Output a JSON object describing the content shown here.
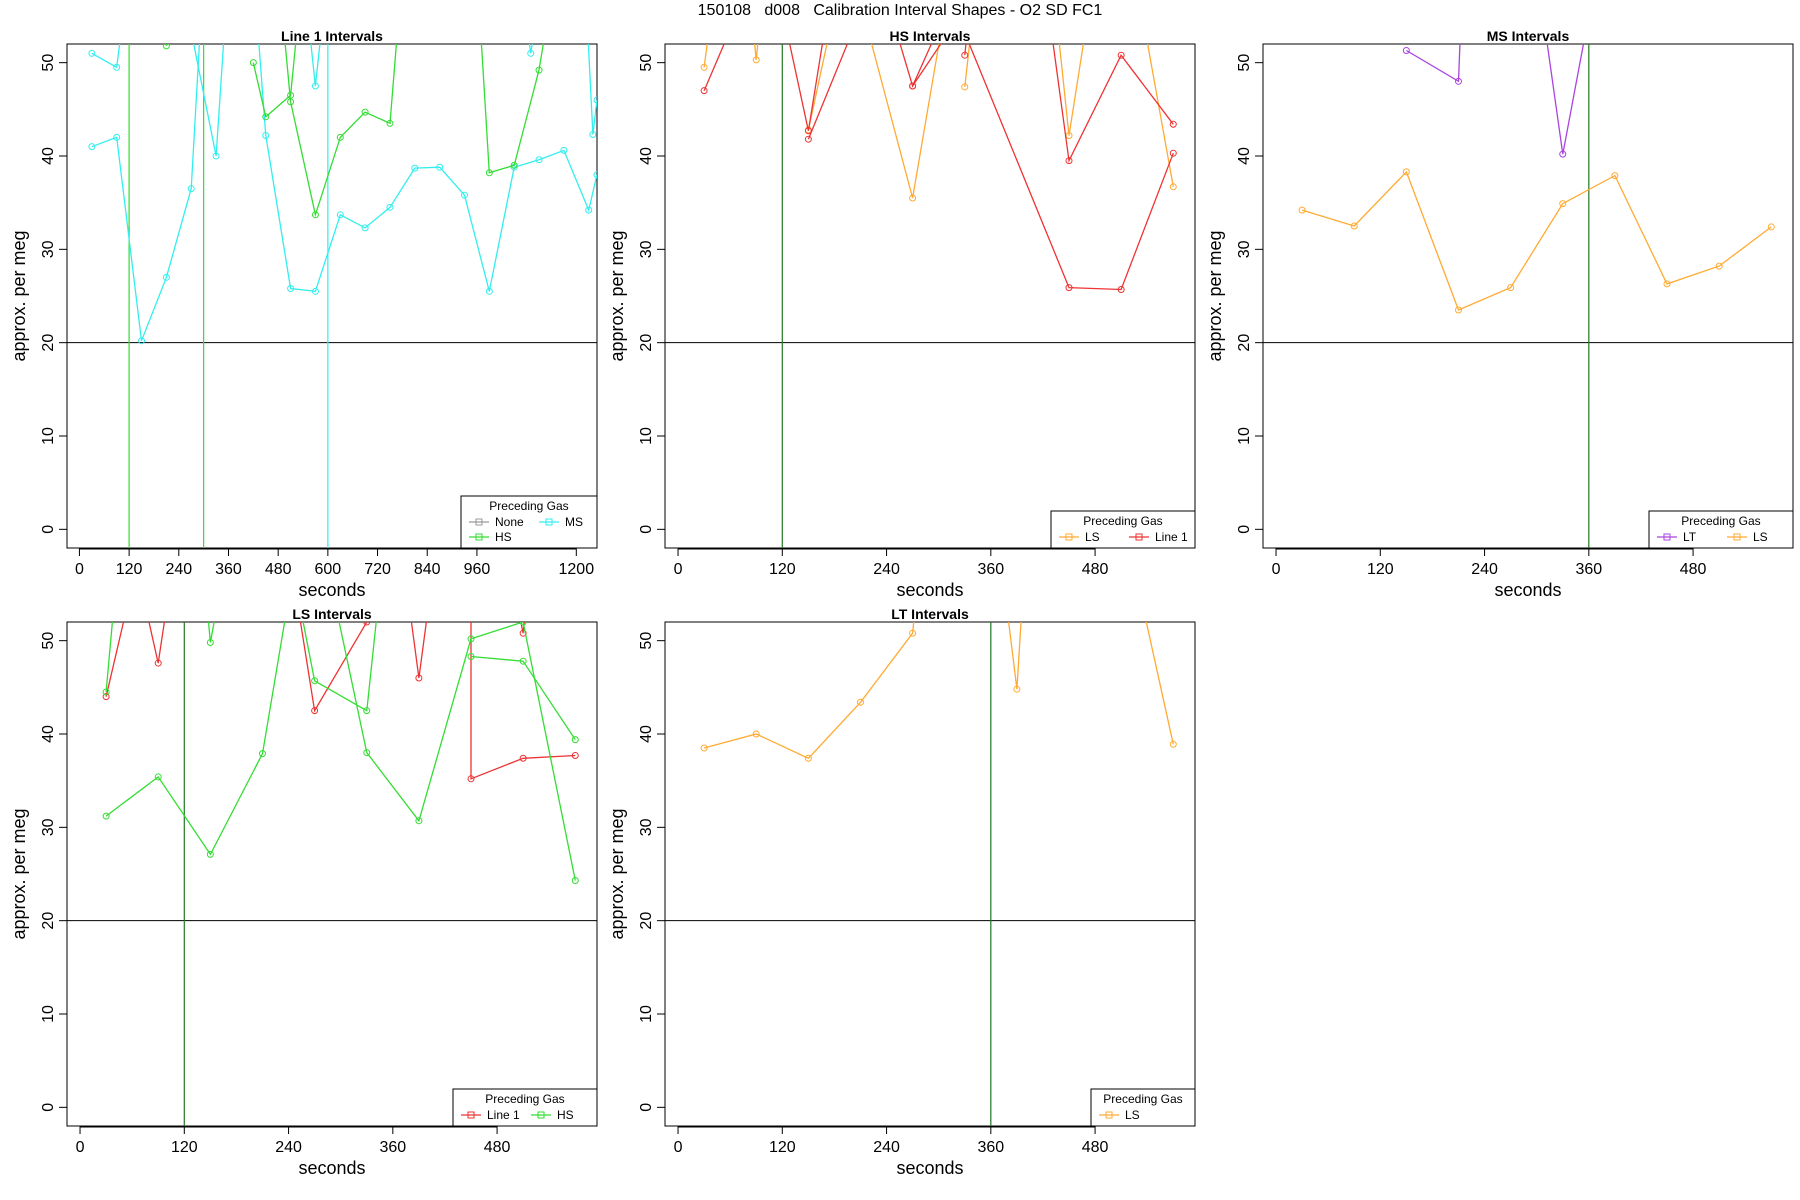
{
  "figure": {
    "title": "150108   d008   Calibration Interval Shapes - O2 SD FC1"
  },
  "colors": {
    "None": "#999999",
    "HS": "#33dd33",
    "MS": "#33eeee",
    "LS": "#ffaa33",
    "Line 1": "#ee3333",
    "LT": "#aa44dd",
    "hline": "#000000"
  },
  "chart_data": [
    {
      "type": "line",
      "title": "Line 1 Intervals",
      "xlabel": "seconds",
      "ylabel": "approx. per meg",
      "xlim": [
        -30,
        1250
      ],
      "ylim": [
        -2,
        52
      ],
      "xticks": [
        0,
        120,
        240,
        360,
        480,
        600,
        720,
        840,
        960,
        1200
      ],
      "yticks": [
        0,
        10,
        20,
        30,
        40,
        50
      ],
      "hline": 20,
      "vlines": [
        {
          "x": 120,
          "color": "HS"
        },
        {
          "x": 300,
          "color": "HS"
        },
        {
          "x": 600,
          "color": "MS"
        }
      ],
      "legend": {
        "title": "Preceding Gas",
        "position": "bottom-right",
        "cols": 2,
        "entries": [
          "None",
          "HS",
          "MS"
        ]
      },
      "series": [
        {
          "name": "MS",
          "segments": [
            [
              [
                30,
                51
              ],
              [
                90,
                49.5
              ],
              [
                120,
                60
              ]
            ],
            [
              [
                240,
                60
              ],
              [
                330,
                40
              ],
              [
                360,
                60
              ]
            ],
            [
              [
                540,
                60
              ],
              [
                570,
                47.5
              ],
              [
                600,
                60
              ]
            ],
            [
              [
                1060,
                60
              ],
              [
                1090,
                51
              ],
              [
                1120,
                60
              ]
            ],
            [
              [
                1220,
                60
              ],
              [
                1240,
                42.3
              ],
              [
                1250,
                46
              ]
            ],
            [
              [
                30,
                41
              ],
              [
                90,
                42
              ],
              [
                150,
                20.2
              ],
              [
                210,
                27
              ],
              [
                270,
                36.5
              ],
              [
                300,
                60
              ]
            ],
            [
              [
                420,
                60
              ],
              [
                450,
                42.2
              ],
              [
                510,
                25.8
              ],
              [
                570,
                25.5
              ],
              [
                630,
                33.7
              ],
              [
                690,
                32.3
              ],
              [
                750,
                34.5
              ],
              [
                810,
                38.7
              ],
              [
                870,
                38.8
              ],
              [
                930,
                35.8
              ],
              [
                990,
                25.5
              ],
              [
                1050,
                38.8
              ],
              [
                1110,
                39.6
              ],
              [
                1170,
                40.6
              ],
              [
                1230,
                34.2
              ],
              [
                1250,
                38
              ]
            ]
          ]
        },
        {
          "name": "HS",
          "segments": [
            [
              [
                200,
                60
              ],
              [
                210,
                51.8
              ],
              [
                220,
                60
              ]
            ],
            [
              [
                420,
                50
              ],
              [
                450,
                44.2
              ],
              [
                510,
                46.5
              ],
              [
                540,
                60
              ]
            ],
            [
              [
                480,
                60
              ],
              [
                510,
                45.8
              ],
              [
                570,
                33.7
              ],
              [
                630,
                42
              ],
              [
                690,
                44.7
              ],
              [
                750,
                43.5
              ],
              [
                780,
                60
              ]
            ],
            [
              [
                960,
                60
              ],
              [
                990,
                38.2
              ],
              [
                1050,
                39
              ],
              [
                1110,
                49.2
              ],
              [
                1150,
                60
              ]
            ]
          ]
        }
      ]
    },
    {
      "type": "line",
      "title": "HS Intervals",
      "xlabel": "seconds",
      "ylabel": "approx. per meg",
      "xlim": [
        -15,
        595
      ],
      "ylim": [
        -2,
        52
      ],
      "xticks": [
        0,
        120,
        240,
        360,
        480
      ],
      "yticks": [
        0,
        10,
        20,
        30,
        40,
        50
      ],
      "hline": 20,
      "vlines": [
        {
          "x": 120,
          "color": "HS"
        }
      ],
      "legend": {
        "title": "Preceding Gas",
        "position": "bottom-right",
        "cols": 2,
        "entries": [
          "LS",
          "Line 1"
        ]
      },
      "series": [
        {
          "name": "LS",
          "segments": [
            [
              [
                30,
                49.5
              ],
              [
                45,
                60
              ]
            ],
            [
              [
                80,
                60
              ],
              [
                90,
                50.3
              ],
              [
                100,
                60
              ]
            ],
            [
              [
                150,
                42.8
              ],
              [
                190,
                60
              ]
            ],
            [
              [
                200,
                60
              ],
              [
                270,
                35.5
              ],
              [
                315,
                60
              ]
            ],
            [
              [
                330,
                47.4
              ],
              [
                345,
                60
              ]
            ],
            [
              [
                430,
                60
              ],
              [
                450,
                42.2
              ],
              [
                480,
                60
              ]
            ],
            [
              [
                525,
                60
              ],
              [
                570,
                36.7
              ]
            ]
          ]
        },
        {
          "name": "Line 1",
          "segments": [
            [
              [
                30,
                47
              ],
              [
                90,
                60
              ]
            ],
            [
              [
                110,
                60
              ],
              [
                150,
                42.7
              ],
              [
                180,
                60
              ]
            ],
            [
              [
                150,
                41.8
              ],
              [
                230,
                60
              ]
            ],
            [
              [
                230,
                60
              ],
              [
                270,
                47.5
              ],
              [
                330,
                60
              ]
            ],
            [
              [
                330,
                50.8
              ],
              [
                340,
                60
              ]
            ],
            [
              [
                270,
                47.5
              ],
              [
                360,
                60
              ]
            ],
            [
              [
                300,
                60
              ],
              [
                450,
                25.9
              ],
              [
                510,
                25.7
              ],
              [
                570,
                40.3
              ]
            ],
            [
              [
                420,
                60
              ],
              [
                450,
                39.5
              ],
              [
                510,
                50.8
              ],
              [
                570,
                43.4
              ]
            ]
          ]
        }
      ]
    },
    {
      "type": "line",
      "title": "MS Intervals",
      "xlabel": "seconds",
      "ylabel": "approx. per meg",
      "xlim": [
        -15,
        595
      ],
      "ylim": [
        -2,
        52
      ],
      "xticks": [
        0,
        120,
        240,
        360,
        480
      ],
      "yticks": [
        0,
        10,
        20,
        30,
        40,
        50
      ],
      "hline": 20,
      "vlines": [
        {
          "x": 360,
          "color": "HS"
        }
      ],
      "legend": {
        "title": "Preceding Gas",
        "position": "bottom-right",
        "cols": 2,
        "entries": [
          "LT",
          "LS"
        ]
      },
      "series": [
        {
          "name": "LT",
          "segments": [
            [
              [
                150,
                51.3
              ],
              [
                210,
                48
              ],
              [
                215,
                60
              ]
            ],
            [
              [
                300,
                60
              ],
              [
                330,
                40.2
              ],
              [
                370,
                60
              ]
            ]
          ]
        },
        {
          "name": "LS",
          "segments": [
            [
              [
                30,
                34.2
              ],
              [
                90,
                32.5
              ],
              [
                150,
                38.3
              ],
              [
                210,
                23.5
              ],
              [
                270,
                25.9
              ],
              [
                330,
                34.9
              ],
              [
                390,
                37.9
              ],
              [
                450,
                26.3
              ],
              [
                510,
                28.2
              ],
              [
                570,
                32.4
              ]
            ]
          ]
        }
      ]
    },
    {
      "type": "line",
      "title": "LS Intervals",
      "xlabel": "seconds",
      "ylabel": "approx. per meg",
      "xlim": [
        -15,
        595
      ],
      "ylim": [
        -2,
        52
      ],
      "xticks": [
        0,
        120,
        240,
        360,
        480
      ],
      "yticks": [
        0,
        10,
        20,
        30,
        40,
        50
      ],
      "hline": 20,
      "vlines": [
        {
          "x": 120,
          "color": "HS"
        }
      ],
      "legend": {
        "title": "Preceding Gas",
        "position": "bottom-right",
        "cols": 2,
        "entries": [
          "Line 1",
          "HS"
        ]
      },
      "series": [
        {
          "name": "Line 1",
          "segments": [
            [
              [
                30,
                44
              ],
              [
                70,
                60
              ]
            ],
            [
              [
                60,
                60
              ],
              [
                90,
                47.6
              ],
              [
                110,
                60
              ]
            ],
            [
              [
                240,
                60
              ],
              [
                270,
                42.5
              ],
              [
                330,
                52
              ],
              [
                340,
                60
              ]
            ],
            [
              [
                370,
                60
              ],
              [
                390,
                46
              ],
              [
                410,
                60
              ]
            ],
            [
              [
                450,
                60
              ],
              [
                450,
                35.2
              ],
              [
                510,
                37.4
              ],
              [
                570,
                37.7
              ]
            ],
            [
              [
                490,
                60
              ],
              [
                510,
                50.8
              ],
              [
                520,
                60
              ]
            ]
          ]
        },
        {
          "name": "HS",
          "segments": [
            [
              [
                30,
                44.5
              ],
              [
                45,
                60
              ]
            ],
            [
              [
                140,
                60
              ],
              [
                150,
                49.8
              ],
              [
                170,
                60
              ]
            ],
            [
              [
                30,
                31.2
              ],
              [
                90,
                35.4
              ],
              [
                150,
                27.1
              ],
              [
                210,
                37.9
              ],
              [
                250,
                60
              ]
            ],
            [
              [
                240,
                60
              ],
              [
                270,
                45.7
              ],
              [
                330,
                42.5
              ],
              [
                350,
                60
              ]
            ],
            [
              [
                280,
                60
              ],
              [
                330,
                38
              ],
              [
                390,
                30.7
              ],
              [
                450,
                50.2
              ],
              [
                510,
                52
              ],
              [
                570,
                24.3
              ]
            ],
            [
              [
                450,
                48.3
              ],
              [
                510,
                47.8
              ],
              [
                570,
                39.4
              ]
            ]
          ]
        }
      ]
    },
    {
      "type": "line",
      "title": "LT Intervals",
      "xlabel": "seconds",
      "ylabel": "approx. per meg",
      "xlim": [
        -15,
        595
      ],
      "ylim": [
        -2,
        52
      ],
      "xticks": [
        0,
        120,
        240,
        360,
        480
      ],
      "yticks": [
        0,
        10,
        20,
        30,
        40,
        50
      ],
      "hline": 20,
      "vlines": [
        {
          "x": 360,
          "color": "HS"
        }
      ],
      "legend": {
        "title": "Preceding Gas",
        "position": "bottom-right",
        "cols": 1,
        "entries": [
          "LS"
        ]
      },
      "series": [
        {
          "name": "LS",
          "segments": [
            [
              [
                30,
                38.5
              ],
              [
                90,
                40
              ],
              [
                150,
                37.4
              ],
              [
                210,
                43.4
              ],
              [
                270,
                50.8
              ],
              [
                280,
                60
              ]
            ],
            [
              [
                370,
                60
              ],
              [
                390,
                44.8
              ],
              [
                400,
                60
              ]
            ],
            [
              [
                520,
                60
              ],
              [
                570,
                38.9
              ]
            ]
          ]
        }
      ]
    }
  ]
}
